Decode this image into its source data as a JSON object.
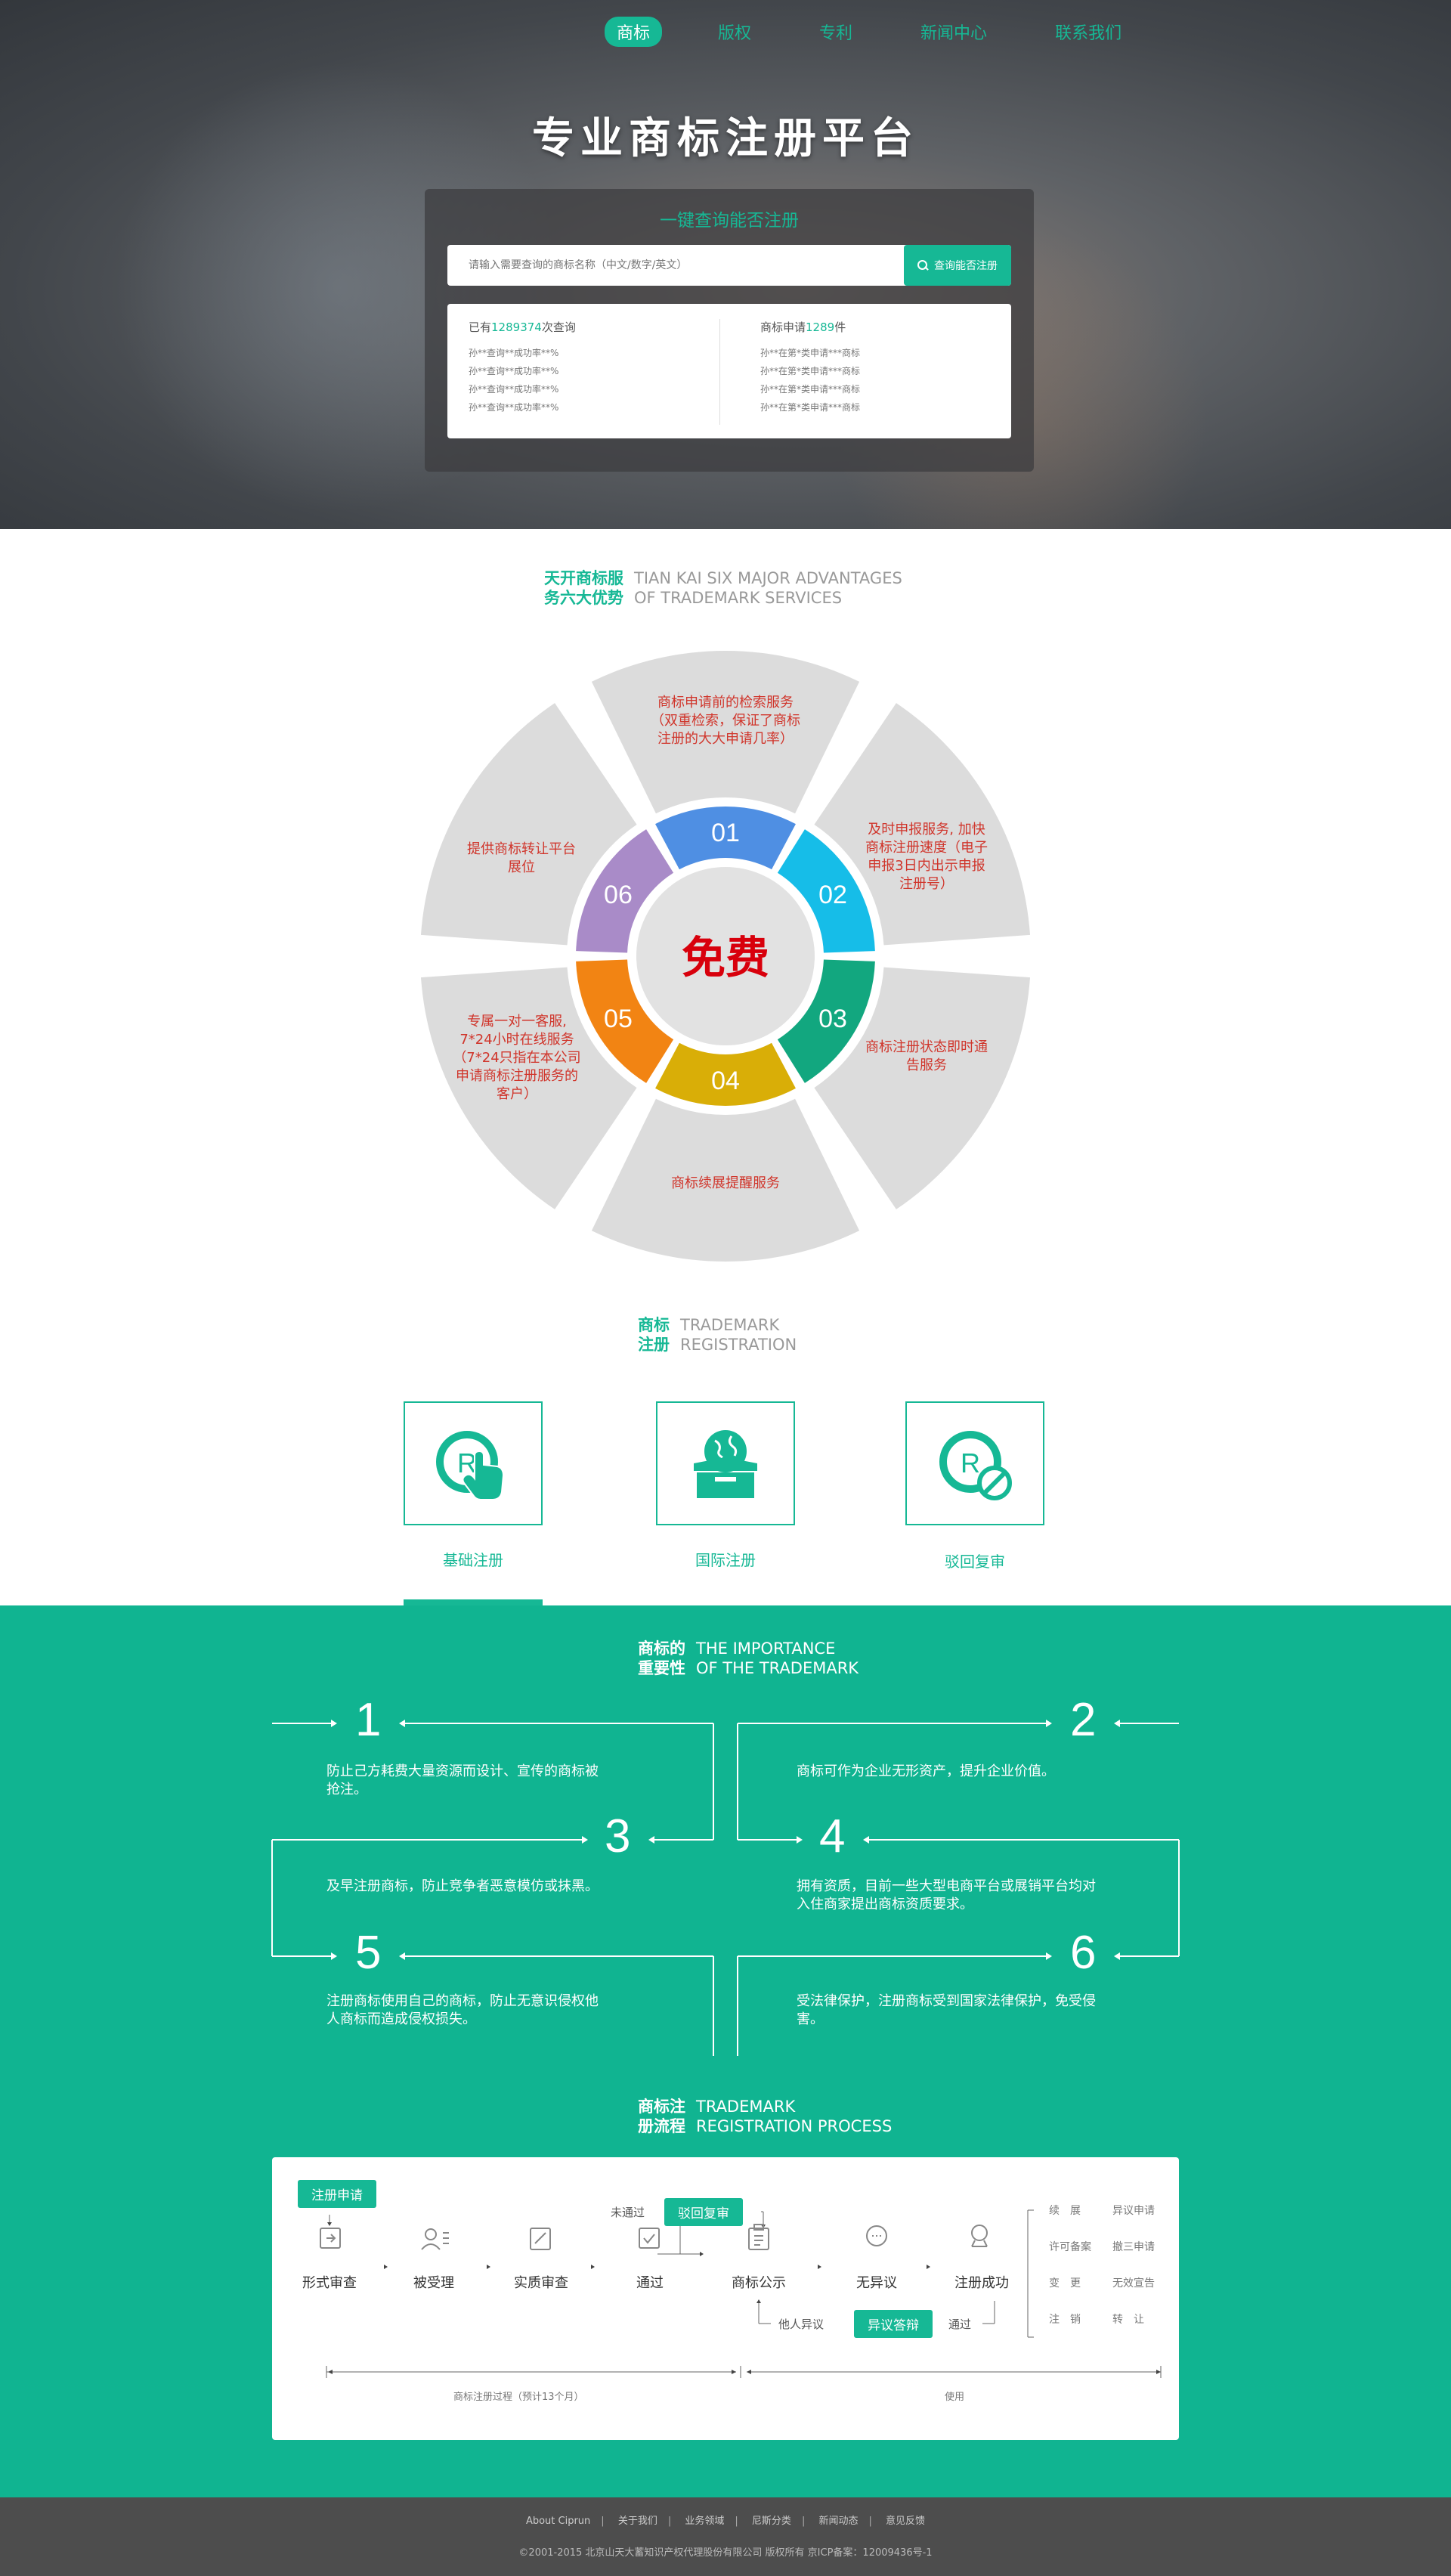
{
  "nav": {
    "items": [
      {
        "label": "商标",
        "active": true
      },
      {
        "label": "版权",
        "active": false
      },
      {
        "label": "专利",
        "active": false
      },
      {
        "label": "新闻中心",
        "active": false
      },
      {
        "label": "联系我们",
        "active": false
      }
    ]
  },
  "hero": {
    "title": "专业商标注册平台",
    "subtitle": "一键查询能否注册",
    "search_placeholder": "请输入需要查询的商标名称（中文/数字/英文）",
    "search_button": "查询能否注册",
    "query_prefix": "已有",
    "query_count": "1289374",
    "query_suffix": "次查询",
    "query_rows": [
      "孙**查询**成功率**%",
      "孙**查询**成功率**%",
      "孙**查询**成功率**%",
      "孙**查询**成功率**%"
    ],
    "apply_prefix": "商标申请",
    "apply_count": "1289",
    "apply_suffix": "件",
    "apply_rows": [
      "孙**在第*类申请***商标",
      "孙**在第*类申请***商标",
      "孙**在第*类申请***商标",
      "孙**在第*类申请***商标"
    ]
  },
  "advantages": {
    "cn": "天开商标服务六大优势",
    "cn_lines": [
      "天开商标服",
      "务六大优势"
    ],
    "en_lines": [
      "TIAN KAI SIX MAJOR ADVANTAGES",
      "OF TRADEMARK SERVICES"
    ],
    "center": "免费",
    "items": [
      {
        "num": "01",
        "text": "商标申请前的检索服务（双重检索，保证了商标注册的大大申请几率）",
        "color": "#4f8fe3"
      },
      {
        "num": "02",
        "text": "及时申报服务, 加快商标注册速度（电子申报3日内出示申报注册号）",
        "color": "#16bde8"
      },
      {
        "num": "03",
        "text": "商标注册状态即时通告服务",
        "color": "#12a77f"
      },
      {
        "num": "04",
        "text": "商标续展提醒服务",
        "color": "#d9ae07"
      },
      {
        "num": "05",
        "text": "专属一对一客服, 7*24小时在线服务（7*24只指在本公司申请商标注册服务的客户）",
        "color": "#f28413"
      },
      {
        "num": "06",
        "text": "提供商标转让平台展位",
        "color": "#a98bc8"
      }
    ]
  },
  "registration": {
    "cn_lines": [
      "商标",
      "注册"
    ],
    "en_lines": [
      "TRADEMARK",
      "REGISTRATION"
    ],
    "types": [
      {
        "label": "基础注册",
        "icon": "trademark-hand-icon"
      },
      {
        "label": "国际注册",
        "icon": "globe-box-icon"
      },
      {
        "label": "驳回复审",
        "icon": "trademark-forbidden-icon"
      }
    ]
  },
  "importance": {
    "cn_lines": [
      "商标的",
      "重要性"
    ],
    "en_lines": [
      "THE IMPORTANCE",
      "OF THE TRADEMARK"
    ],
    "items": [
      {
        "num": "1",
        "text": "防止己方耗费大量资源而设计、宣传的商标被抢注。"
      },
      {
        "num": "2",
        "text": "商标可作为企业无形资产，提升企业价值。"
      },
      {
        "num": "3",
        "text": "及早注册商标，防止竞争者恶意模仿或抹黑。"
      },
      {
        "num": "4",
        "text": "拥有资质，目前一些大型电商平台或展销平台均对入住商家提出商标资质要求。"
      },
      {
        "num": "5",
        "text": "注册商标使用自己的商标，防止无意识侵权他人商标而造成侵权损失。"
      },
      {
        "num": "6",
        "text": "受法律保护，注册商标受到国家法律保护，免受侵害。"
      }
    ]
  },
  "process": {
    "cn_lines": [
      "商标注",
      "册流程"
    ],
    "en_lines": [
      "TRADEMARK",
      "REGISTRATION PROCESS"
    ],
    "apply": "注册申请",
    "steps": [
      "形式审查",
      "被受理",
      "实质审查",
      "通过",
      "商标公示",
      "无异议",
      "注册成功"
    ],
    "reject_branch": "未通过",
    "reject_review": "驳回复审",
    "objection": "他人异议",
    "objection_reply": "异议答辩",
    "pass": "通过",
    "after": [
      [
        "续　展",
        "异议申请"
      ],
      [
        "许可备案",
        "撤三申请"
      ],
      [
        "变　更",
        "无效宣告"
      ],
      [
        "注　销",
        "转　让"
      ]
    ],
    "timeline_left": "商标注册过程（预计13个月）",
    "timeline_right": "使用"
  },
  "footer": {
    "links": [
      "About Ciprun",
      "关于我们",
      "业务领域",
      "尼斯分类",
      "新闻动态",
      "意见反馈"
    ],
    "copyright": "©2001-2015  北京山天大蓄知识产权代理股份有限公司  版权所有    京ICP备案：12009436号-1"
  },
  "colors": {
    "accent": "#16b895",
    "green_bg": "#10b491",
    "footer_bg": "#4d4d4d",
    "wheel_text": "#d0352b",
    "free": "#d8000c"
  }
}
